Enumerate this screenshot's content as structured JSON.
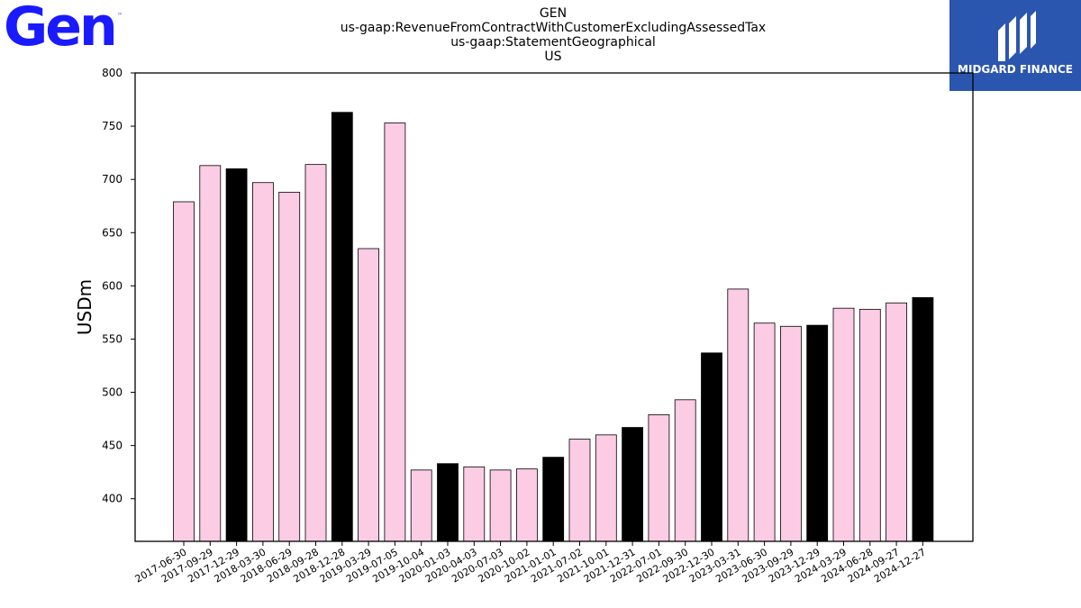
{
  "logos": {
    "left": {
      "text": "Gen",
      "tm": "™",
      "color": "#1a1aff"
    },
    "right": {
      "text": "MIDGARD FINANCE",
      "background": "#2b56b0"
    }
  },
  "chart_data": {
    "type": "bar",
    "title_lines": [
      "GEN",
      "us-gaap:RevenueFromContractWithCustomerExcludingAssessedTax",
      "us-gaap:StatementGeographical",
      "US"
    ],
    "xlabel": "",
    "ylabel": "USDm",
    "ylim": [
      360,
      800
    ],
    "yticks": [
      400,
      450,
      500,
      550,
      600,
      650,
      700,
      750,
      800
    ],
    "grid": false,
    "categories": [
      "2017-06-30",
      "2017-09-29",
      "2017-12-29",
      "2018-03-30",
      "2018-06-29",
      "2018-09-28",
      "2018-12-28",
      "2019-03-29",
      "2019-07-05",
      "2019-10-04",
      "2020-01-03",
      "2020-04-03",
      "2020-07-03",
      "2020-10-02",
      "2021-01-01",
      "2021-07-02",
      "2021-10-01",
      "2021-12-31",
      "2022-07-01",
      "2022-09-30",
      "2022-12-30",
      "2023-03-31",
      "2023-06-30",
      "2023-09-29",
      "2023-12-29",
      "2024-03-29",
      "2024-06-28",
      "2024-09-27",
      "2024-12-27"
    ],
    "values": [
      679,
      713,
      710,
      697,
      688,
      714,
      763,
      635,
      753,
      427,
      433,
      430,
      427,
      428,
      439,
      456,
      460,
      467,
      479,
      493,
      537,
      597,
      565,
      562,
      563,
      579,
      578,
      584,
      589
    ],
    "highlight": [
      false,
      false,
      true,
      false,
      false,
      false,
      true,
      false,
      false,
      false,
      true,
      false,
      false,
      false,
      true,
      false,
      false,
      true,
      false,
      false,
      true,
      false,
      false,
      false,
      true,
      false,
      false,
      false,
      true
    ],
    "colors": {
      "normal": "#fccbe4",
      "highlight": "#000000",
      "edge": "#000000"
    }
  }
}
